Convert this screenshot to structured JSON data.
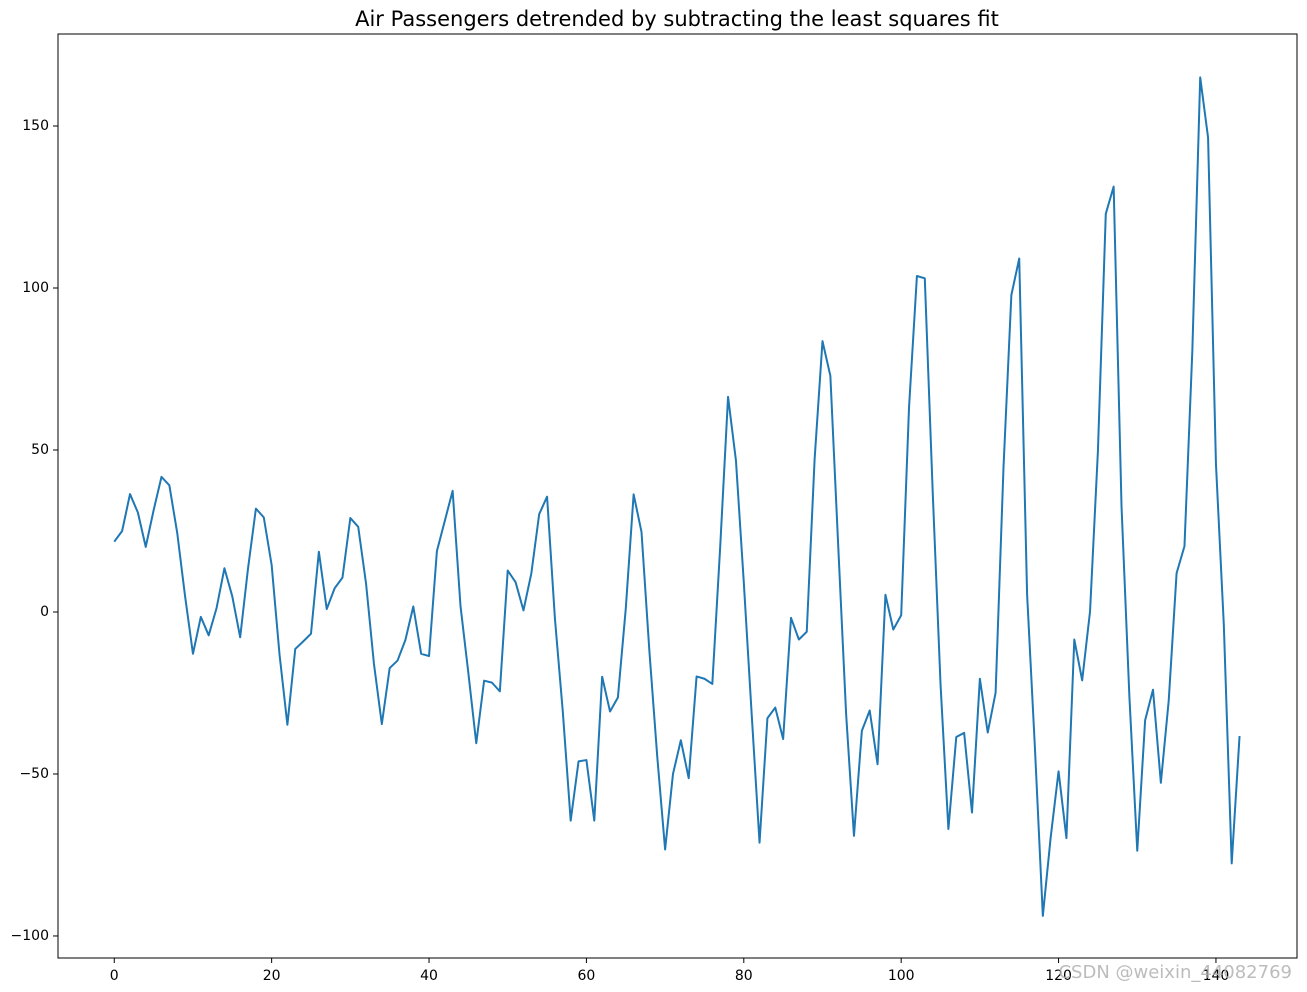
{
  "chart_data": {
    "type": "line",
    "title": "Air Passengers detrended by subtracting the least squares fit",
    "color": "#1f77b4",
    "x": [
      0,
      1,
      2,
      3,
      4,
      5,
      6,
      7,
      8,
      9,
      10,
      11,
      12,
      13,
      14,
      15,
      16,
      17,
      18,
      19,
      20,
      21,
      22,
      23,
      24,
      25,
      26,
      27,
      28,
      29,
      30,
      31,
      32,
      33,
      34,
      35,
      36,
      37,
      38,
      39,
      40,
      41,
      42,
      43,
      44,
      45,
      46,
      47,
      48,
      49,
      50,
      51,
      52,
      53,
      54,
      55,
      56,
      57,
      58,
      59,
      60,
      61,
      62,
      63,
      64,
      65,
      66,
      67,
      68,
      69,
      70,
      71,
      72,
      73,
      74,
      75,
      76,
      77,
      78,
      79,
      80,
      81,
      82,
      83,
      84,
      85,
      86,
      87,
      88,
      89,
      90,
      91,
      92,
      93,
      94,
      95,
      96,
      97,
      98,
      99,
      100,
      101,
      102,
      103,
      104,
      105,
      106,
      107,
      108,
      109,
      110,
      111,
      112,
      113,
      114,
      115,
      116,
      117,
      118,
      119,
      120,
      121,
      122,
      123,
      124,
      125,
      126,
      127,
      128,
      129,
      130,
      131,
      132,
      133,
      134,
      135,
      136,
      137,
      138,
      139,
      140,
      141,
      142,
      143
    ],
    "values": [
      21.7,
      25.0,
      36.4,
      30.7,
      20.1,
      31.4,
      41.7,
      39.1,
      24.4,
      4.8,
      -12.9,
      -1.5,
      -7.2,
      1.2,
      13.5,
      4.8,
      -7.8,
      13.5,
      31.9,
      29.2,
      14.5,
      -13.1,
      -34.8,
      -11.4,
      -9.1,
      -6.7,
      18.6,
      0.9,
      7.3,
      10.6,
      29.0,
      26.3,
      8.7,
      -16.0,
      -34.6,
      -17.3,
      -15.0,
      -8.6,
      1.7,
      -12.9,
      -13.6,
      18.8,
      28.1,
      37.4,
      1.8,
      -18.9,
      -40.5,
      -21.2,
      -21.8,
      -24.5,
      12.8,
      9.2,
      0.5,
      11.9,
      30.2,
      35.6,
      -2.1,
      -30.8,
      -64.4,
      -46.1,
      -45.7,
      -64.4,
      -20.0,
      -30.7,
      -26.4,
      1.0,
      36.3,
      24.7,
      -12.0,
      -44.6,
      -73.3,
      -50.0,
      -39.6,
      -51.3,
      -19.9,
      -20.6,
      -22.2,
      20.1,
      66.4,
      46.8,
      9.1,
      -31.5,
      -71.2,
      -32.8,
      -29.5,
      -39.2,
      -1.8,
      -8.5,
      -6.1,
      47.2,
      83.6,
      72.9,
      20.3,
      -31.4,
      -69.1,
      -36.7,
      -30.4,
      -47.0,
      5.3,
      -5.4,
      -1.0,
      63.3,
      103.7,
      103.0,
      37.4,
      -22.3,
      -67.0,
      -38.6,
      -37.3,
      -61.9,
      -20.6,
      -37.2,
      -24.9,
      44.5,
      97.8,
      109.1,
      5.5,
      -42.2,
      -93.8,
      -69.5,
      -49.2,
      -69.8,
      -8.5,
      -21.1,
      0.2,
      49.6,
      122.9,
      131.3,
      32.6,
      -26.1,
      -73.7,
      -33.4,
      -24.0,
      -52.7,
      -27.3,
      12.0,
      20.3,
      80.7,
      165.0,
      146.4,
      45.7,
      -4.0,
      -77.6,
      -38.3
    ],
    "xlim": [
      -7.15,
      150.3
    ],
    "ylim": [
      -106.8,
      178.4
    ],
    "xticks": [
      0,
      20,
      40,
      60,
      80,
      100,
      120,
      140
    ],
    "yticks": [
      {
        "value": -100,
        "label": "−100"
      },
      {
        "value": -50,
        "label": "−50"
      },
      0,
      50,
      100,
      150
    ],
    "watermark": "CSDN @weixin_44082769"
  }
}
